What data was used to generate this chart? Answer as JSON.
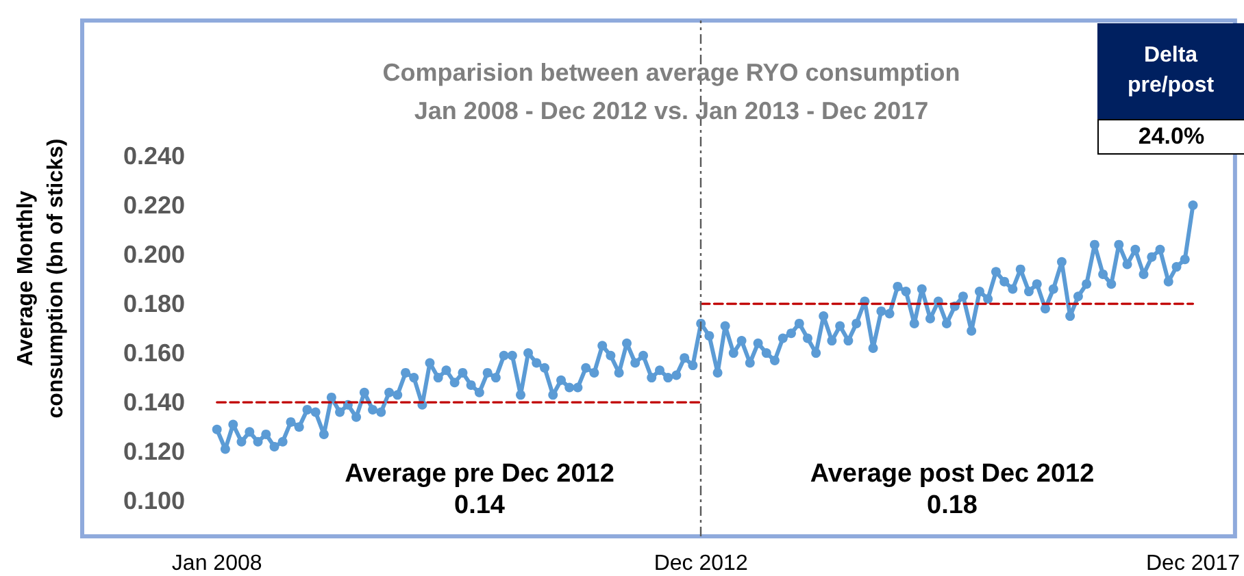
{
  "chart_data": {
    "type": "line",
    "title": "Comparision between average RYO consumption\nJan 2008 - Dec 2012 vs. Jan 2013 - Dec 2017",
    "ylabel": "Average Monthly\nconsumption (bn of sticks)",
    "x": [
      "2008-01",
      "2008-02",
      "2008-03",
      "2008-04",
      "2008-05",
      "2008-06",
      "2008-07",
      "2008-08",
      "2008-09",
      "2008-10",
      "2008-11",
      "2008-12",
      "2009-01",
      "2009-02",
      "2009-03",
      "2009-04",
      "2009-05",
      "2009-06",
      "2009-07",
      "2009-08",
      "2009-09",
      "2009-10",
      "2009-11",
      "2009-12",
      "2010-01",
      "2010-02",
      "2010-03",
      "2010-04",
      "2010-05",
      "2010-06",
      "2010-07",
      "2010-08",
      "2010-09",
      "2010-10",
      "2010-11",
      "2010-12",
      "2011-01",
      "2011-02",
      "2011-03",
      "2011-04",
      "2011-05",
      "2011-06",
      "2011-07",
      "2011-08",
      "2011-09",
      "2011-10",
      "2011-11",
      "2011-12",
      "2012-01",
      "2012-02",
      "2012-03",
      "2012-04",
      "2012-05",
      "2012-06",
      "2012-07",
      "2012-08",
      "2012-09",
      "2012-10",
      "2012-11",
      "2012-12",
      "2013-01",
      "2013-02",
      "2013-03",
      "2013-04",
      "2013-05",
      "2013-06",
      "2013-07",
      "2013-08",
      "2013-09",
      "2013-10",
      "2013-11",
      "2013-12",
      "2014-01",
      "2014-02",
      "2014-03",
      "2014-04",
      "2014-05",
      "2014-06",
      "2014-07",
      "2014-08",
      "2014-09",
      "2014-10",
      "2014-11",
      "2014-12",
      "2015-01",
      "2015-02",
      "2015-03",
      "2015-04",
      "2015-05",
      "2015-06",
      "2015-07",
      "2015-08",
      "2015-09",
      "2015-10",
      "2015-11",
      "2015-12",
      "2016-01",
      "2016-02",
      "2016-03",
      "2016-04",
      "2016-05",
      "2016-06",
      "2016-07",
      "2016-08",
      "2016-09",
      "2016-10",
      "2016-11",
      "2016-12",
      "2017-01",
      "2017-02",
      "2017-03",
      "2017-04",
      "2017-05",
      "2017-06",
      "2017-07",
      "2017-08",
      "2017-09",
      "2017-10",
      "2017-11",
      "2017-12"
    ],
    "xlim": [
      "2006-08-19",
      "2018-05-06"
    ],
    "xticks": [
      {
        "value": "2008-01",
        "label": "Jan 2008"
      },
      {
        "value": "2012-12",
        "label": "Dec 2012"
      },
      {
        "value": "2017-12",
        "label": "Dec 2017"
      }
    ],
    "marker": "circle",
    "line_style": "solid",
    "series": [
      {
        "color": "#5b9bd5",
        "values": [
          0.129,
          0.121,
          0.131,
          0.124,
          0.128,
          0.124,
          0.127,
          0.122,
          0.124,
          0.132,
          0.13,
          0.137,
          0.136,
          0.127,
          0.142,
          0.136,
          0.139,
          0.134,
          0.144,
          0.137,
          0.136,
          0.144,
          0.143,
          0.152,
          0.15,
          0.139,
          0.156,
          0.15,
          0.153,
          0.148,
          0.152,
          0.147,
          0.144,
          0.152,
          0.15,
          0.159,
          0.159,
          0.143,
          0.16,
          0.156,
          0.154,
          0.143,
          0.149,
          0.146,
          0.146,
          0.154,
          0.152,
          0.163,
          0.159,
          0.152,
          0.164,
          0.156,
          0.159,
          0.15,
          0.153,
          0.15,
          0.151,
          0.158,
          0.155,
          0.172,
          0.167,
          0.152,
          0.171,
          0.16,
          0.165,
          0.156,
          0.164,
          0.16,
          0.157,
          0.166,
          0.168,
          0.172,
          0.166,
          0.16,
          0.175,
          0.165,
          0.171,
          0.165,
          0.172,
          0.181,
          0.162,
          0.177,
          0.176,
          0.187,
          0.185,
          0.172,
          0.186,
          0.174,
          0.181,
          0.172,
          0.179,
          0.183,
          0.169,
          0.185,
          0.182,
          0.193,
          0.189,
          0.186,
          0.194,
          0.185,
          0.188,
          0.178,
          0.186,
          0.197,
          0.175,
          0.183,
          0.188,
          0.204,
          0.192,
          0.188,
          0.204,
          0.196,
          0.202,
          0.192,
          0.199,
          0.202,
          0.189,
          0.195,
          0.198,
          0.22
        ]
      },
      {
        "type": "line",
        "color": "#c00000",
        "line_style": "dashed",
        "marker": "none",
        "values": [
          0.14,
          0.14,
          0.14,
          0.14,
          0.14,
          0.14,
          0.14,
          0.14,
          0.14,
          0.14,
          0.14,
          0.14,
          0.14,
          0.14,
          0.14,
          0.14,
          0.14,
          0.14,
          0.14,
          0.14,
          0.14,
          0.14,
          0.14,
          0.14,
          0.14,
          0.14,
          0.14,
          0.14,
          0.14,
          0.14,
          0.14,
          0.14,
          0.14,
          0.14,
          0.14,
          0.14,
          0.14,
          0.14,
          0.14,
          0.14,
          0.14,
          0.14,
          0.14,
          0.14,
          0.14,
          0.14,
          0.14,
          0.14,
          0.14,
          0.14,
          0.14,
          0.14,
          0.14,
          0.14,
          0.14,
          0.14,
          0.14,
          0.14,
          0.14,
          0.14,
          null,
          null,
          null,
          null,
          null,
          null,
          null,
          null,
          null,
          null,
          null,
          null,
          null,
          null,
          null,
          null,
          null,
          null,
          null,
          null,
          null,
          null,
          null,
          null,
          null,
          null,
          null,
          null,
          null,
          null,
          null,
          null,
          null,
          null,
          null,
          null,
          null,
          null,
          null,
          null,
          null,
          null,
          null,
          null,
          null,
          null,
          null,
          null,
          null,
          null,
          null,
          null,
          null,
          null,
          null,
          null,
          null,
          null,
          null,
          null
        ]
      },
      {
        "type": "line",
        "color": "#c00000",
        "line_style": "dashed",
        "marker": "none",
        "values": [
          null,
          null,
          null,
          null,
          null,
          null,
          null,
          null,
          null,
          null,
          null,
          null,
          null,
          null,
          null,
          null,
          null,
          null,
          null,
          null,
          null,
          null,
          null,
          null,
          null,
          null,
          null,
          null,
          null,
          null,
          null,
          null,
          null,
          null,
          null,
          null,
          null,
          null,
          null,
          null,
          null,
          null,
          null,
          null,
          null,
          null,
          null,
          null,
          null,
          null,
          null,
          null,
          null,
          null,
          null,
          null,
          null,
          null,
          null,
          0.18,
          0.18,
          0.18,
          0.18,
          0.18,
          0.18,
          0.18,
          0.18,
          0.18,
          0.18,
          0.18,
          0.18,
          0.18,
          0.18,
          0.18,
          0.18,
          0.18,
          0.18,
          0.18,
          0.18,
          0.18,
          0.18,
          0.18,
          0.18,
          0.18,
          0.18,
          0.18,
          0.18,
          0.18,
          0.18,
          0.18,
          0.18,
          0.18,
          0.18,
          0.18,
          0.18,
          0.18,
          0.18,
          0.18,
          0.18,
          0.18,
          0.18,
          0.18,
          0.18,
          0.18,
          0.18,
          0.18,
          0.18,
          0.18,
          0.18,
          0.18,
          0.18,
          0.18,
          0.18,
          0.18,
          0.18,
          0.18,
          0.18,
          0.18,
          0.18,
          0.18
        ]
      }
    ],
    "ylim": [
      0.0856,
      0.295
    ],
    "yticks": [
      {
        "value": 0.1,
        "label": "0.100"
      },
      {
        "value": 0.12,
        "label": "0.120"
      },
      {
        "value": 0.14,
        "label": "0.140"
      },
      {
        "value": 0.16,
        "label": "0.160"
      },
      {
        "value": 0.18,
        "label": "0.180"
      },
      {
        "value": 0.2,
        "label": "0.200"
      },
      {
        "value": 0.22,
        "label": "0.220"
      },
      {
        "value": 0.24,
        "label": "0.240"
      }
    ],
    "ref_lines": [
      {
        "axis": "x",
        "value": "2012-12",
        "color": "#595959",
        "line_style": "dashed"
      }
    ],
    "annotations": [
      "Average pre Dec 2012\n0.14",
      "Average post Dec 2012\n0.18",
      "Delta pre/post",
      "24.0%"
    ]
  }
}
